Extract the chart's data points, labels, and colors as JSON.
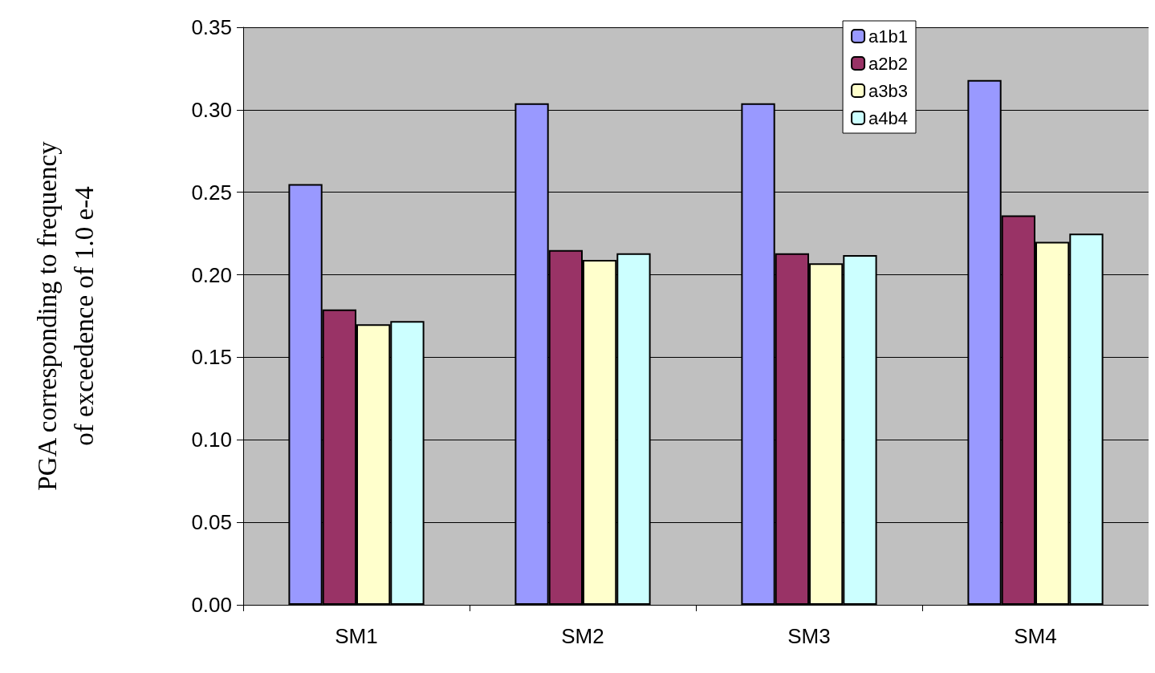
{
  "chart_data": {
    "type": "bar",
    "ylabel": "PGA corresponding to frequency\nof exceedence of 1.0 e-4",
    "categories": [
      "SM1",
      "SM2",
      "SM3",
      "SM4"
    ],
    "series": [
      {
        "name": "a1b1",
        "color": "#9999ff",
        "values": [
          0.255,
          0.304,
          0.304,
          0.318
        ]
      },
      {
        "name": "a2b2",
        "color": "#993366",
        "values": [
          0.179,
          0.215,
          0.213,
          0.236
        ]
      },
      {
        "name": "a3b3",
        "color": "#ffffcc",
        "values": [
          0.17,
          0.209,
          0.207,
          0.22
        ]
      },
      {
        "name": "a4b4",
        "color": "#ccffff",
        "values": [
          0.172,
          0.213,
          0.212,
          0.225
        ]
      }
    ],
    "ylim": [
      0,
      0.35
    ],
    "yticks": [
      {
        "value": 0,
        "label": "0.00"
      },
      {
        "value": 0.05,
        "label": "0.05"
      },
      {
        "value": 0.1,
        "label": "0.10"
      },
      {
        "value": 0.15,
        "label": "0.15"
      },
      {
        "value": 0.2,
        "label": "0.20"
      },
      {
        "value": 0.25,
        "label": "0.25"
      },
      {
        "value": 0.3,
        "label": "0.30"
      },
      {
        "value": 0.35,
        "label": "0.35"
      }
    ],
    "grid": "y",
    "legend": "top right"
  }
}
